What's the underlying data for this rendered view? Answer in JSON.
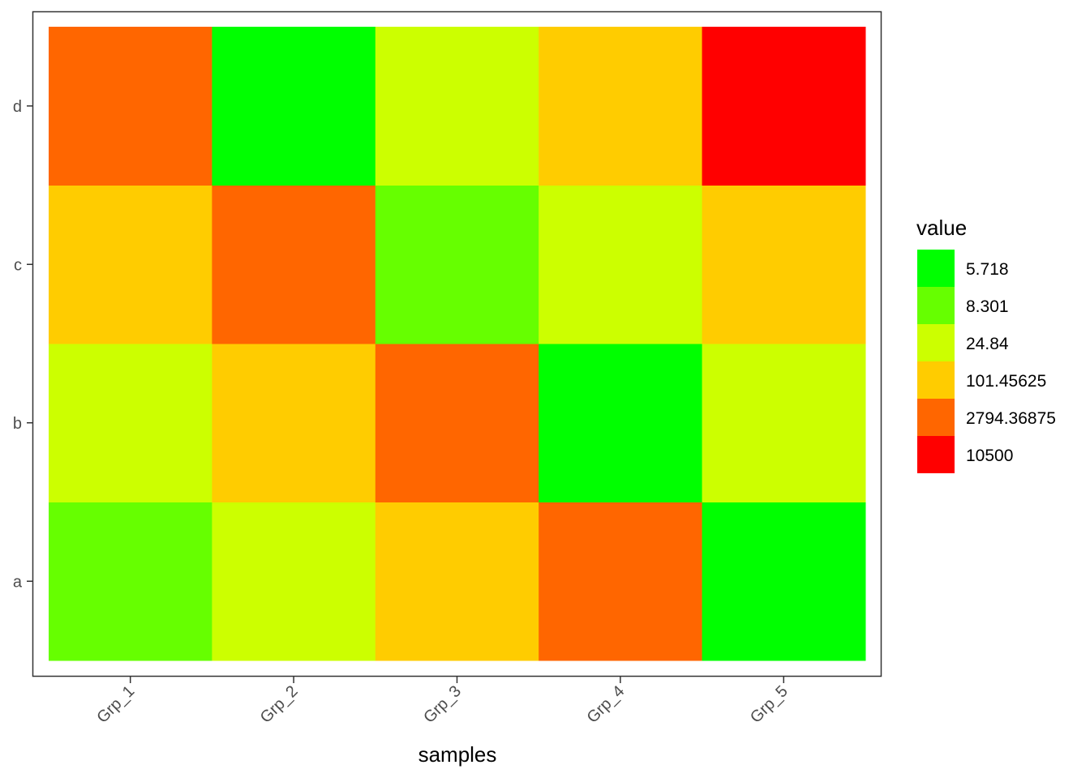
{
  "chart_data": {
    "type": "heatmap",
    "x_categories": [
      "Grp_1",
      "Grp_2",
      "Grp_3",
      "Grp_4",
      "Grp_5"
    ],
    "y_categories": [
      "a",
      "b",
      "c",
      "d"
    ],
    "cells": [
      [
        "8.301",
        "24.84",
        "101.45625",
        "2794.36875",
        "5.718"
      ],
      [
        "24.84",
        "101.45625",
        "2794.36875",
        "5.718",
        "24.84"
      ],
      [
        "101.45625",
        "2794.36875",
        "8.301",
        "24.84",
        "101.45625"
      ],
      [
        "2794.36875",
        "5.718",
        "24.84",
        "101.45625",
        "10500"
      ]
    ],
    "xlabel": "samples",
    "ylabel": "",
    "legend": {
      "title": "value",
      "position": "right",
      "entries": [
        {
          "label": "5.718",
          "color": "#00FF00"
        },
        {
          "label": "8.301",
          "color": "#66FF00"
        },
        {
          "label": "24.84",
          "color": "#CCFF00"
        },
        {
          "label": "101.45625",
          "color": "#FFCC00"
        },
        {
          "label": "2794.36875",
          "color": "#FF6600"
        },
        {
          "label": "10500",
          "color": "#FF0000"
        }
      ]
    },
    "grid": false,
    "x_tick_rotation": 45
  }
}
